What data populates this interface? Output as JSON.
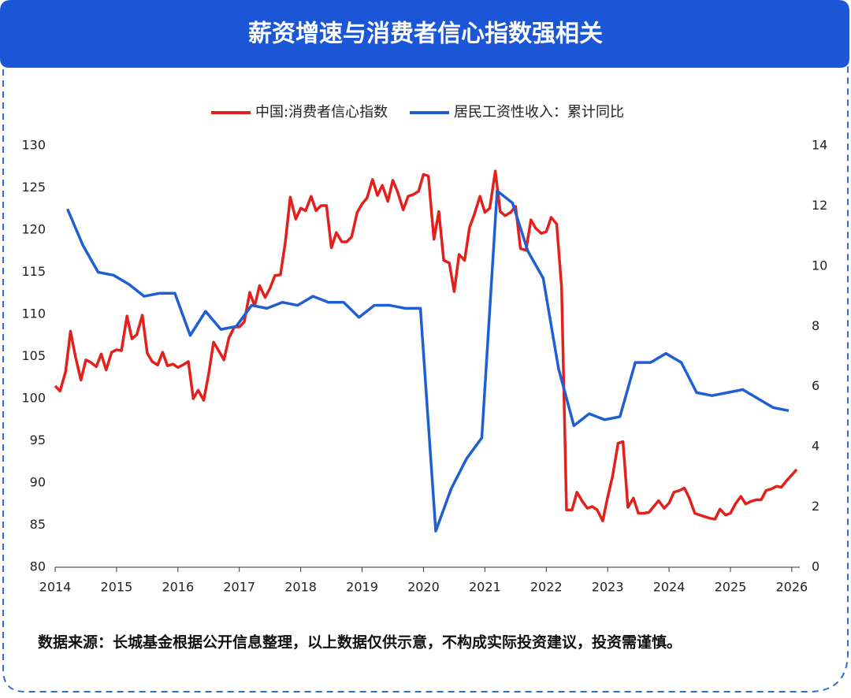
{
  "chart_data": {
    "type": "line",
    "title": "薪资增速与消费者信心指数强相关",
    "source": "数据来源：长城基金根据公开信息整理，以上数据仅供示意，不构成实际投资建议，投资需谨慎。",
    "xlim": [
      2014,
      2026.13
    ],
    "xticks": [
      2014,
      2015,
      2016,
      2017,
      2018,
      2019,
      2020,
      2021,
      2022,
      2023,
      2024,
      2025,
      2026
    ],
    "ylim": [
      80,
      130
    ],
    "yticks": [
      80,
      85,
      90,
      95,
      100,
      105,
      110,
      115,
      120,
      125,
      130
    ],
    "y2lim": [
      0,
      14
    ],
    "y2ticks": [
      0,
      2,
      4,
      6,
      8,
      10,
      12,
      14
    ],
    "legend": "top",
    "series": [
      {
        "name": "中国:消费者信心指数",
        "color": "#e3201b",
        "x": [
          2014,
          2014.08,
          2014.17,
          2014.25,
          2014.33,
          2014.42,
          2014.5,
          2014.58,
          2014.67,
          2014.75,
          2014.83,
          2014.92,
          2015,
          2015.08,
          2015.17,
          2015.25,
          2015.33,
          2015.42,
          2015.5,
          2015.58,
          2015.67,
          2015.75,
          2015.83,
          2015.92,
          2016,
          2016.08,
          2016.17,
          2016.25,
          2016.33,
          2016.42,
          2016.5,
          2016.58,
          2016.67,
          2016.75,
          2016.83,
          2016.92,
          2017,
          2017.08,
          2017.17,
          2017.25,
          2017.33,
          2017.42,
          2017.5,
          2017.58,
          2017.67,
          2017.75,
          2017.83,
          2017.92,
          2018,
          2018.08,
          2018.17,
          2018.25,
          2018.33,
          2018.42,
          2018.5,
          2018.58,
          2018.67,
          2018.75,
          2018.83,
          2018.92,
          2019,
          2019.08,
          2019.17,
          2019.25,
          2019.33,
          2019.42,
          2019.5,
          2019.58,
          2019.67,
          2019.75,
          2019.83,
          2019.92,
          2020,
          2020.08,
          2020.17,
          2020.25,
          2020.33,
          2020.42,
          2020.5,
          2020.58,
          2020.67,
          2020.75,
          2020.83,
          2020.92,
          2021,
          2021.08,
          2021.17,
          2021.25,
          2021.33,
          2021.42,
          2021.5,
          2021.58,
          2021.67,
          2021.75,
          2021.83,
          2021.92,
          2022,
          2022.08,
          2022.17,
          2022.25,
          2022.33,
          2022.42,
          2022.5,
          2022.58,
          2022.67,
          2022.75,
          2022.83,
          2022.92,
          2023,
          2023.08,
          2023.17,
          2023.25,
          2023.33,
          2023.42,
          2023.5,
          2023.58,
          2023.67,
          2023.75,
          2023.83,
          2023.92,
          2024,
          2024.08,
          2024.17,
          2024.25,
          2024.33,
          2024.42,
          2024.5,
          2024.58,
          2024.67,
          2024.75,
          2024.83,
          2024.92,
          2025,
          2025.08,
          2025.17,
          2025.25,
          2025.33,
          2025.42,
          2025.5,
          2025.58,
          2025.67,
          2025.75,
          2025.83,
          2025.92,
          2026.08
        ],
        "values": [
          101.5,
          100.9,
          103.2,
          108,
          105,
          102.2,
          104.6,
          104.3,
          103.8,
          105.3,
          103.4,
          105.5,
          105.8,
          105.7,
          109.8,
          107.1,
          107.6,
          109.9,
          105.4,
          104.4,
          104.0,
          105.5,
          103.9,
          104.1,
          103.7,
          104.0,
          104.4,
          100.0,
          101.0,
          99.8,
          102.9,
          106.7,
          105.6,
          104.6,
          107.2,
          108.5,
          108.5,
          109.1,
          112.6,
          111.0,
          113.4,
          112.0,
          113.1,
          114.6,
          114.7,
          118.6,
          123.9,
          121.3,
          122.6,
          122.3,
          124.0,
          122.3,
          122.9,
          122.9,
          117.9,
          119.7,
          118.6,
          118.6,
          119.2,
          122.1,
          123.1,
          123.8,
          126.0,
          124.1,
          125.3,
          123.4,
          125.9,
          124.5,
          122.4,
          124.0,
          124.2,
          124.6,
          126.6,
          126.4,
          118.9,
          122.2,
          116.4,
          116.1,
          112.7,
          117.1,
          116.4,
          120.3,
          121.9,
          124.0,
          122.1,
          122.6,
          127.0,
          122.2,
          121.7,
          122.1,
          122.8,
          117.8,
          117.6,
          121.2,
          120.2,
          119.6,
          119.8,
          121.5,
          120.7,
          113.2,
          86.8,
          86.8,
          88.9,
          87.9,
          87.0,
          87.2,
          86.8,
          85.5,
          88.3,
          90.8,
          94.7,
          94.9,
          87.1,
          88.2,
          86.4,
          86.4,
          86.5,
          87.2,
          87.9,
          87.0,
          87.6,
          88.9,
          89.1,
          89.4,
          88.2,
          86.4,
          86.2,
          86.0,
          85.8,
          85.7,
          86.9,
          86.2,
          86.4,
          87.5,
          88.4,
          87.5,
          87.8,
          88.0,
          88.0,
          89.1,
          89.3,
          89.6,
          89.5,
          90.3,
          91.6
        ]
      },
      {
        "name": "居民工资性收入：累计同比",
        "color": "#1f5fd1",
        "axis": "y2",
        "x": [
          2014.2,
          2014.45,
          2014.7,
          2014.95,
          2015.2,
          2015.45,
          2015.7,
          2015.95,
          2016.2,
          2016.45,
          2016.7,
          2016.95,
          2017.2,
          2017.45,
          2017.7,
          2017.95,
          2018.2,
          2018.45,
          2018.7,
          2018.95,
          2019.2,
          2019.45,
          2019.7,
          2019.95,
          2020.2,
          2020.45,
          2020.7,
          2020.95,
          2021.2,
          2021.45,
          2021.7,
          2021.95,
          2022.2,
          2022.45,
          2022.7,
          2022.95,
          2023.2,
          2023.45,
          2023.7,
          2023.95,
          2024.2,
          2024.45,
          2024.7,
          2024.95,
          2025.2,
          2025.45,
          2025.7,
          2025.95
        ],
        "values": [
          11.9,
          10.7,
          9.8,
          9.7,
          9.4,
          9.0,
          9.1,
          9.1,
          7.7,
          8.5,
          7.9,
          8.0,
          8.7,
          8.6,
          8.8,
          8.7,
          9.0,
          8.8,
          8.8,
          8.3,
          8.7,
          8.7,
          8.6,
          8.6,
          1.2,
          2.6,
          3.6,
          4.3,
          12.5,
          12.1,
          10.5,
          9.6,
          6.6,
          4.7,
          5.1,
          4.9,
          5.0,
          6.8,
          6.8,
          7.1,
          6.8,
          5.8,
          5.7,
          5.8,
          5.9,
          5.6,
          5.3,
          5.2
        ]
      }
    ]
  }
}
